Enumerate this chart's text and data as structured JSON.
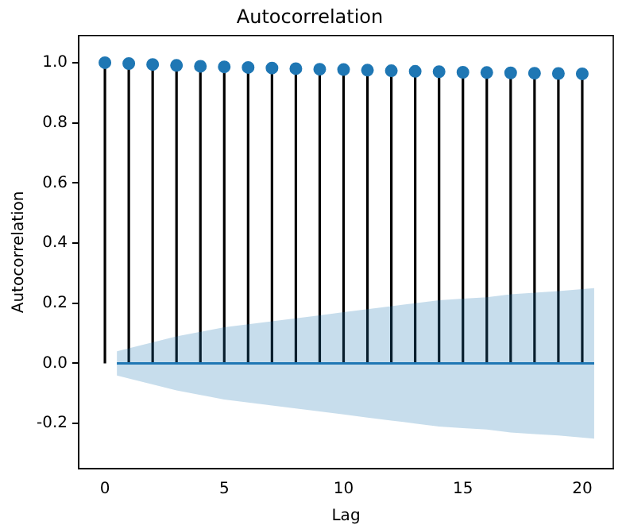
{
  "chart_data": {
    "type": "lollipop",
    "title": "Autocorrelation",
    "xlabel": "Lag",
    "ylabel": "Autocorrelation",
    "x": [
      0,
      1,
      2,
      3,
      4,
      5,
      6,
      7,
      8,
      9,
      10,
      11,
      12,
      13,
      14,
      15,
      16,
      17,
      18,
      19,
      20
    ],
    "series": [
      {
        "marker": "circle",
        "color": "#1f77b4",
        "values": [
          1.0,
          0.997,
          0.994,
          0.991,
          0.988,
          0.986,
          0.984,
          0.982,
          0.98,
          0.978,
          0.977,
          0.975,
          0.973,
          0.971,
          0.97,
          0.968,
          0.967,
          0.966,
          0.965,
          0.964,
          0.963
        ]
      },
      {
        "type": "line",
        "marker": "none",
        "color": "#1f77b4",
        "values": [
          0,
          0,
          0,
          0,
          0,
          0,
          0,
          0,
          0,
          0,
          0,
          0,
          0,
          0,
          0,
          0,
          0,
          0,
          0,
          0
        ],
        "x": [
          0.5,
          2,
          3,
          4,
          5,
          6,
          7,
          8,
          9,
          10,
          11,
          12,
          13,
          14,
          15,
          16,
          17,
          18,
          19,
          20.5
        ],
        "lower": [
          -0.04,
          -0.07,
          -0.09,
          -0.105,
          -0.12,
          -0.13,
          -0.14,
          -0.15,
          -0.16,
          -0.17,
          -0.18,
          -0.19,
          -0.2,
          -0.21,
          -0.215,
          -0.22,
          -0.23,
          -0.235,
          -0.24,
          -0.25
        ],
        "upper": [
          0.04,
          0.07,
          0.09,
          0.105,
          0.12,
          0.13,
          0.14,
          0.15,
          0.16,
          0.17,
          0.18,
          0.19,
          0.2,
          0.21,
          0.215,
          0.22,
          0.23,
          0.235,
          0.24,
          0.25
        ]
      }
    ],
    "grid": false,
    "legend": false,
    "xlim": [
      -1.1,
      21.3
    ],
    "xticks": [
      0,
      5,
      10,
      15,
      20
    ],
    "ylim": [
      -0.35,
      1.09
    ],
    "yticks": [
      -0.2,
      {
        "value": 0,
        "label": "0.0"
      },
      0.2,
      0.4,
      0.6,
      0.8,
      {
        "value": 1,
        "label": "1.0"
      }
    ]
  }
}
